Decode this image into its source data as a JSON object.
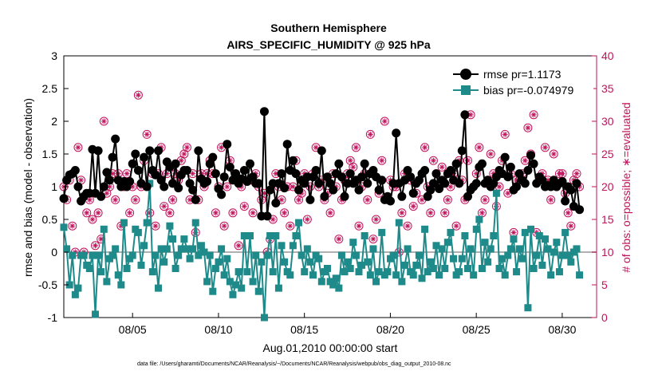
{
  "chart_data": {
    "type": "line",
    "title": "Southern Hemisphere",
    "subtitle": "AIRS_SPECIFIC_HUMIDITY @ 925 hPa",
    "xlabel": "Aug.01,2010 00:00:00 start",
    "ylabel": "rmse and bias (model - observation)",
    "y2label": "# of obs: o=possible; ∗=evaluated",
    "footnote": "data file: /Users/gharamti/Documents/NCAR/Reanalysis/~/Documents/NCAR/Reanalysis/webpub/obs_diag_output_2010-08.nc",
    "xlim": [
      1,
      32
    ],
    "xticks": [
      5,
      10,
      15,
      20,
      25,
      30
    ],
    "xticklabels": [
      "08/05",
      "08/10",
      "08/15",
      "08/20",
      "08/25",
      "08/30"
    ],
    "ylim": [
      -1,
      3
    ],
    "yticks": [
      -1,
      -0.5,
      0,
      0.5,
      1,
      1.5,
      2,
      2.5,
      3
    ],
    "yticklabels": [
      "-1",
      "-0.5",
      "0",
      "0.5",
      "1",
      "1.5",
      "2",
      "2.5",
      "3"
    ],
    "y2lim": [
      0,
      40
    ],
    "y2ticks": [
      0,
      5,
      10,
      15,
      20,
      25,
      30,
      35,
      40
    ],
    "y2ticklabels": [
      "0",
      "5",
      "10",
      "15",
      "20",
      "25",
      "30",
      "35",
      "40"
    ],
    "grid": false,
    "legend_position": "top-right",
    "zero_line": 0,
    "colors": {
      "rmse": "#000000",
      "bias": "#1f8a8a",
      "obs": "#c0125a",
      "zero_line": "#b0b0b0"
    },
    "series": [
      {
        "name": "rmse pr=1.1173",
        "axis": "left",
        "values": [
          0.82,
          1.1,
          1.18,
          1.2,
          1.25,
          1.0,
          0.78,
          0.85,
          0.9,
          0.9,
          1.57,
          0.9,
          1.55,
          0.85,
          1.0,
          1.22,
          1.1,
          1.45,
          1.73,
          1.1,
          1.0,
          1.08,
          1.0,
          1.08,
          1.35,
          1.5,
          1.25,
          1.05,
          1.45,
          1.0,
          1.55,
          1.25,
          1.18,
          1.55,
          1.1,
          1.0,
          1.38,
          1.3,
          1.05,
          1.35,
          0.98,
          1.18,
          1.25,
          1.25,
          1.05,
          0.95,
          0.8,
          1.55,
          1.12,
          1.05,
          1.08,
          1.35,
          1.45,
          1.2,
          0.97,
          0.88,
          1.15,
          1.65,
          1.3,
          1.1,
          1.2,
          1.05,
          1.12,
          1.25,
          1.08,
          1.35,
          1.15,
          1.05,
          1.05,
          0.55,
          2.15,
          0.55,
          0.95,
          1.05,
          0.75,
          1.05,
          1.2,
          0.98,
          1.65,
          1.25,
          1.4,
          1.2,
          0.95,
          1.1,
          1.05,
          1.15,
          0.8,
          1.15,
          1.25,
          1.05,
          1.55,
          0.85,
          1.15,
          1.05,
          0.95,
          1.2,
          1.35,
          1.15,
          0.85,
          1.05,
          1.2,
          1.05,
          1.1,
          0.95,
          1.15,
          1.35,
          1.05,
          1.2,
          1.25,
          1.15,
          0.95,
          1.1,
          0.8,
          0.85,
          0.78,
          1.05,
          1.82,
          1.05,
          0.85,
          1.1,
          1.25,
          1.15,
          0.9,
          1.05,
          1.1,
          1.2,
          1.25,
          0.85,
          0.95,
          1.05,
          1.2,
          0.97,
          1.1,
          1.05,
          1.2,
          1.25,
          1.1,
          1.35,
          1.05,
          1.55,
          2.1,
          0.85,
          0.95,
          1.0,
          1.05,
          1.3,
          1.35,
          1.05,
          1.1,
          1.0,
          1.05,
          1.15,
          1.25,
          1.2,
          1.45,
          1.15,
          1.3,
          0.95,
          1.0,
          1.2,
          1.1,
          1.05,
          1.25,
          1.48,
          1.35,
          1.05,
          1.15,
          1.1,
          1.0,
          1.02,
          1.0,
          1.1,
          1.0,
          1.05,
          1.08,
          0.78,
          1.0,
          0.95,
          0.7,
          1.05,
          0.65
        ],
        "x_start": 1.0,
        "x_step": 0.1667
      },
      {
        "name": "bias pr=-0.074979",
        "axis": "left",
        "values": [
          0.38,
          0.05,
          -0.5,
          -0.05,
          -0.65,
          -0.55,
          -0.05,
          -0.05,
          -0.2,
          -0.25,
          -0.05,
          -0.95,
          -0.05,
          -0.3,
          0.35,
          -0.45,
          -0.1,
          -0.05,
          0.05,
          -0.35,
          -0.5,
          0.45,
          -0.25,
          -0.1,
          -0.05,
          0.35,
          0.3,
          -0.2,
          0.1,
          0.45,
          1.05,
          -0.3,
          -0.05,
          -0.55,
          0.05,
          -0.15,
          0.05,
          0.4,
          0.2,
          -0.25,
          -0.05,
          0.05,
          0.2,
          0.05,
          -0.1,
          0.05,
          0.45,
          -0.05,
          0.1,
          0.0,
          -0.45,
          -0.05,
          -0.6,
          -0.25,
          -0.15,
          0.05,
          -0.35,
          -0.1,
          -0.45,
          -0.65,
          -0.5,
          -0.3,
          -0.55,
          0.25,
          -0.3,
          0.25,
          -0.45,
          -0.05,
          -0.6,
          -0.15,
          -1.0,
          -0.05,
          0.25,
          -0.3,
          0.25,
          -0.55,
          0.1,
          -0.15,
          -0.3,
          -0.35,
          0.1,
          0.25,
          0.45,
          -0.05,
          -0.3,
          0.05,
          -0.15,
          -0.35,
          -0.05,
          -0.1,
          -0.45,
          -0.3,
          -0.25,
          -0.45,
          -0.5,
          -0.4,
          -0.55,
          -0.05,
          -0.3,
          -0.15,
          -0.25,
          0.15,
          -0.05,
          -0.3,
          -0.2,
          0.25,
          -0.15,
          -0.35,
          0.05,
          -0.45,
          -0.3,
          0.3,
          -0.35,
          -0.3,
          -0.1,
          -0.05,
          -0.35,
          0.45,
          -0.45,
          -0.2,
          0.05,
          -0.3,
          -0.35,
          -0.2,
          -0.05,
          -0.4,
          0.35,
          -0.3,
          -0.15,
          -0.25,
          0.1,
          -0.35,
          0.05,
          -0.25,
          0.15,
          0.3,
          -0.1,
          -0.35,
          -0.3,
          -0.1,
          0.25,
          -0.25,
          0.05,
          -0.35,
          0.35,
          0.5,
          -0.25,
          0.15,
          -0.15,
          0.05,
          0.25,
          0.9,
          -0.25,
          -0.1,
          -0.35,
          -0.05,
          0.05,
          0.2,
          -0.3,
          0.05,
          -0.1,
          0.3,
          -0.85,
          0.35,
          -0.25,
          -0.05,
          0.25,
          -0.2,
          0.2,
          0.05,
          -0.35,
          0.0,
          0.15,
          -0.3,
          -0.05,
          0.3,
          -0.05,
          -0.15,
          0.0,
          0.05,
          -0.35
        ],
        "x_start": 1.0,
        "x_step": 0.1667
      },
      {
        "name": "obs possible",
        "axis": "right",
        "marker": "circle",
        "values": [
          20,
          18,
          21,
          14,
          10,
          26,
          21,
          10,
          16,
          18,
          15,
          11,
          16,
          12,
          30,
          19,
          20,
          22,
          18,
          22,
          14,
          20,
          22,
          16,
          20,
          18,
          34,
          20,
          24,
          28,
          16,
          22,
          14,
          22,
          26,
          17,
          22,
          16,
          18,
          22,
          21,
          24,
          25,
          26,
          18,
          22,
          13,
          18,
          22,
          20,
          22,
          24,
          22,
          16,
          20,
          26,
          14,
          20,
          24,
          16,
          22,
          11,
          20,
          17,
          21,
          21,
          16,
          22,
          20,
          18,
          19,
          10,
          12,
          15,
          22,
          20,
          18,
          16,
          20,
          14,
          20,
          24,
          18,
          19,
          22,
          15,
          20,
          22,
          26,
          20,
          21,
          18,
          19,
          16,
          22,
          20,
          12,
          18,
          21,
          22,
          24,
          23,
          26,
          14,
          20,
          22,
          18,
          28,
          12,
          15,
          19,
          24,
          30,
          18,
          21,
          20,
          20,
          10,
          16,
          22,
          14,
          21,
          17,
          19,
          21,
          18,
          26,
          20,
          16,
          24,
          22,
          20,
          23,
          16,
          18,
          20,
          22,
          14,
          24,
          21,
          18,
          24,
          31,
          20,
          22,
          26,
          16,
          18,
          21,
          25,
          22,
          17,
          20,
          24,
          28,
          19,
          22,
          13,
          21,
          21,
          22,
          24,
          29,
          25,
          31,
          13,
          21,
          22,
          26,
          21,
          18,
          25,
          20,
          22,
          22,
          19,
          16,
          14,
          21,
          22,
          20
        ],
        "x_start": 1.0,
        "x_step": 0.1667
      },
      {
        "name": "obs evaluated",
        "axis": "right",
        "marker": "asterisk",
        "values": [
          20,
          18,
          21,
          14,
          10,
          26,
          21,
          10,
          16,
          18,
          15,
          11,
          16,
          12,
          30,
          19,
          20,
          22,
          18,
          22,
          14,
          20,
          22,
          16,
          20,
          18,
          34,
          20,
          24,
          28,
          16,
          22,
          14,
          22,
          26,
          17,
          22,
          16,
          18,
          22,
          21,
          24,
          25,
          26,
          18,
          22,
          13,
          18,
          22,
          20,
          22,
          24,
          22,
          16,
          20,
          26,
          14,
          20,
          24,
          16,
          22,
          11,
          20,
          17,
          21,
          21,
          16,
          22,
          20,
          18,
          19,
          10,
          12,
          15,
          22,
          20,
          18,
          16,
          20,
          14,
          20,
          24,
          18,
          19,
          22,
          15,
          20,
          22,
          26,
          20,
          21,
          18,
          19,
          16,
          22,
          20,
          12,
          18,
          21,
          22,
          24,
          23,
          26,
          14,
          20,
          22,
          18,
          28,
          12,
          15,
          19,
          24,
          30,
          18,
          21,
          20,
          20,
          10,
          16,
          22,
          14,
          21,
          17,
          19,
          21,
          18,
          26,
          20,
          16,
          24,
          22,
          20,
          23,
          16,
          18,
          20,
          22,
          14,
          24,
          21,
          18,
          24,
          31,
          20,
          22,
          26,
          16,
          18,
          21,
          25,
          22,
          17,
          20,
          24,
          28,
          19,
          22,
          13,
          21,
          21,
          22,
          24,
          29,
          25,
          31,
          13,
          21,
          22,
          26,
          21,
          18,
          25,
          20,
          22,
          22,
          19,
          16,
          14,
          21,
          22,
          20
        ],
        "x_start": 1.0,
        "x_step": 0.1667
      }
    ]
  }
}
